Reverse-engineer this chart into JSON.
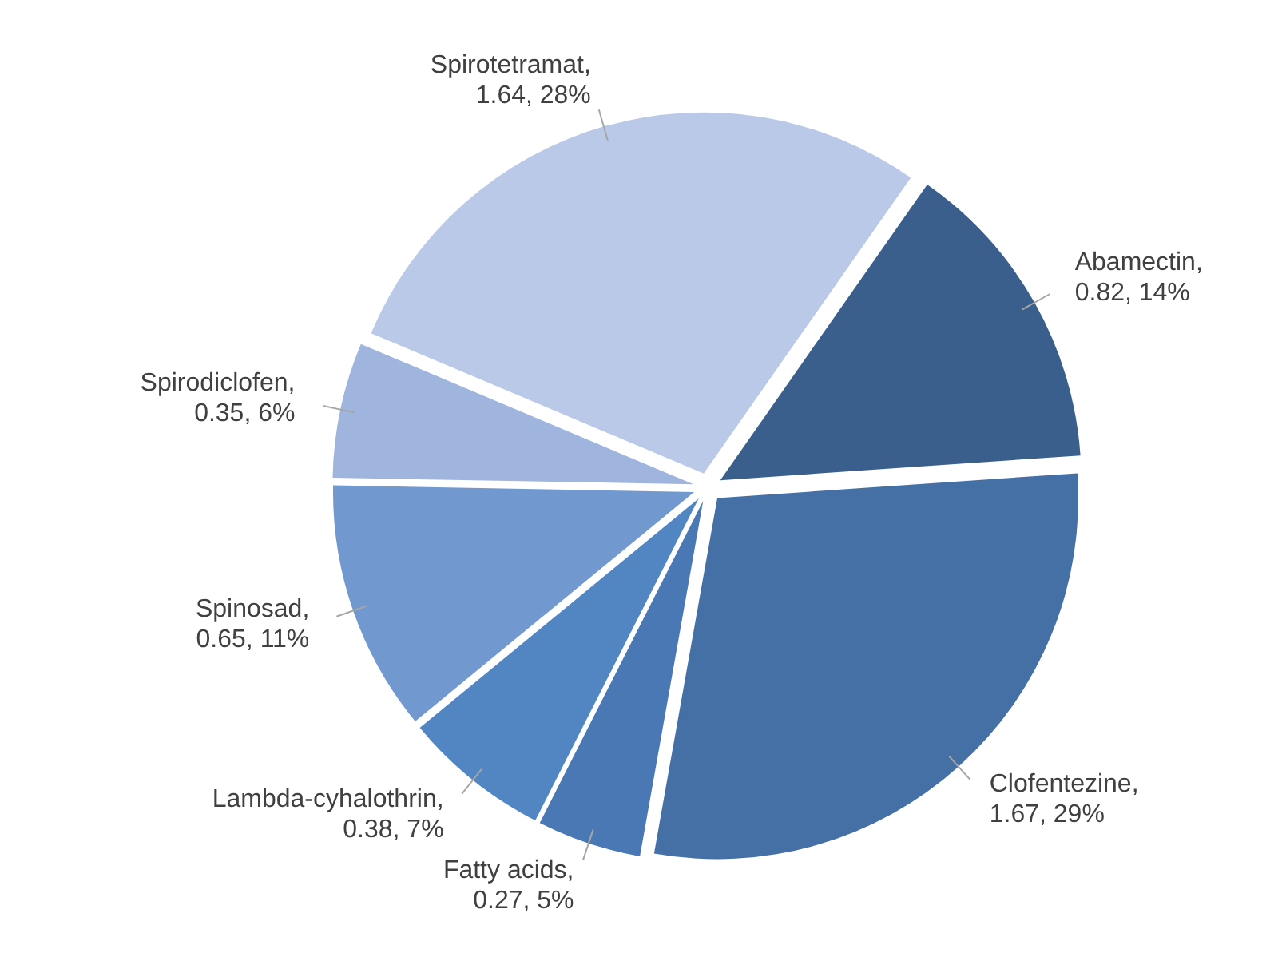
{
  "chart_data": {
    "type": "pie",
    "categories": [
      "Abamectin",
      "Clofentezine",
      "Fatty acids",
      "Lambda-cyhalothrin",
      "Spinosad",
      "Spirodiclofen",
      "Spirotetramat"
    ],
    "values": [
      0.82,
      1.67,
      0.27,
      0.38,
      0.65,
      0.35,
      1.64
    ],
    "value_labels": [
      ", 0.82, 14%",
      ", 1.67, 29%",
      ", 0.27, 5%",
      ", 0.38, 7%",
      ", 0.65, 11%",
      ", 0.35, 6%",
      ", 1.64, 28%"
    ],
    "colors": [
      "#3b5f8d",
      "#4570a5",
      "#4a78b4",
      "#5186c3",
      "#7298d0",
      "#9fb5de",
      "#b9c9e7"
    ],
    "legend": false
  }
}
